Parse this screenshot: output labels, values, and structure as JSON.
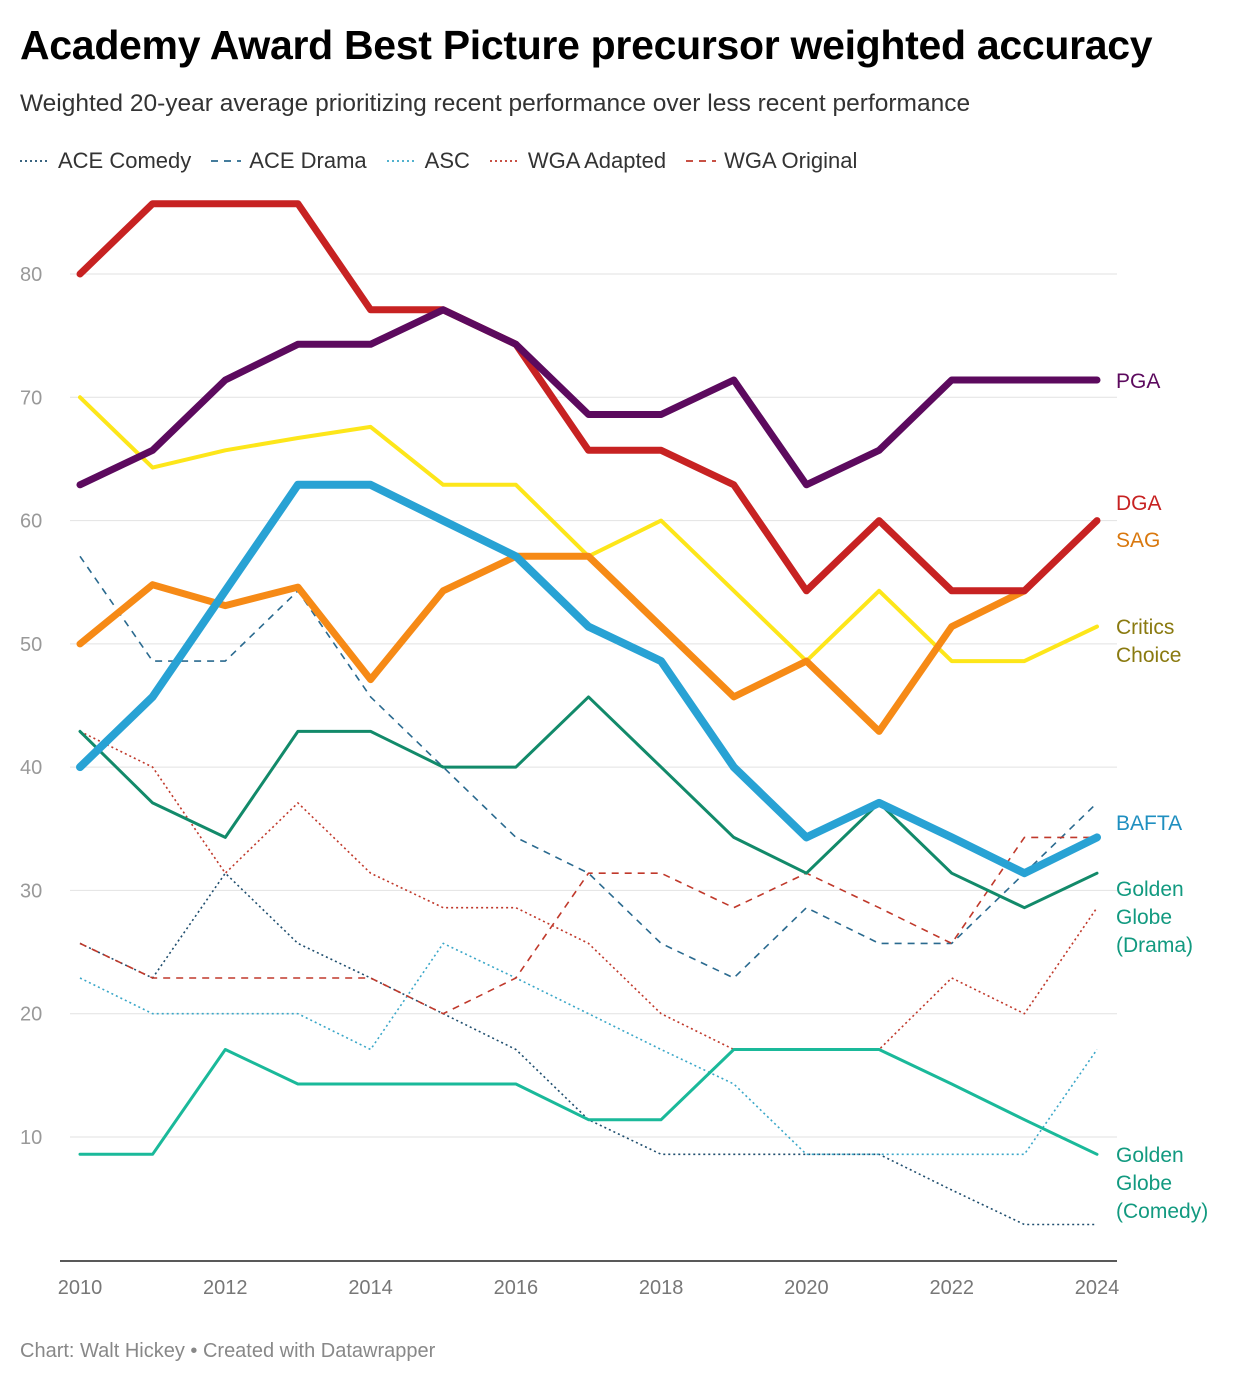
{
  "title": "Academy Award Best Picture precursor weighted accuracy",
  "subtitle": "Weighted 20-year average prioritizing recent performance over less recent performance",
  "credit": "Chart: Walt Hickey • Created with Datawrapper",
  "legend": [
    {
      "name": "ACE Comedy",
      "color": "#1f4e6e",
      "dash": "dotted"
    },
    {
      "name": "ACE Drama",
      "color": "#2a6a8f",
      "dash": "dashed"
    },
    {
      "name": "ASC",
      "color": "#3aa7c8",
      "dash": "dotted"
    },
    {
      "name": "WGA Adapted",
      "color": "#c0392b",
      "dash": "dotted"
    },
    {
      "name": "WGA Original",
      "color": "#c0392b",
      "dash": "dashed"
    }
  ],
  "chart_data": {
    "type": "line",
    "x": [
      2010,
      2011,
      2012,
      2013,
      2014,
      2015,
      2016,
      2017,
      2018,
      2019,
      2020,
      2021,
      2022,
      2023,
      2024
    ],
    "xticks": [
      "2010",
      "2012",
      "2014",
      "2016",
      "2018",
      "2020",
      "2022",
      "2024"
    ],
    "yticks": [
      "10",
      "20",
      "30",
      "40",
      "50",
      "60",
      "70",
      "80"
    ],
    "ylim": [
      0,
      88
    ],
    "grid": true,
    "series": [
      {
        "name": "ACE Comedy",
        "color": "#1f4e6e",
        "width": 1.6,
        "dash": "dotted",
        "label": false,
        "values": [
          25.7,
          22.9,
          31.4,
          25.7,
          22.9,
          20,
          17.1,
          11.4,
          8.6,
          8.6,
          8.6,
          8.6,
          5.7,
          2.9,
          2.9
        ]
      },
      {
        "name": "ACE Drama",
        "color": "#2a6a8f",
        "width": 1.6,
        "dash": "dashed",
        "label": false,
        "values": [
          57.1,
          48.6,
          48.6,
          54.3,
          45.7,
          40,
          34.3,
          31.4,
          25.7,
          22.9,
          28.6,
          25.7,
          25.7,
          31.4,
          37.1
        ]
      },
      {
        "name": "ASC",
        "color": "#3aa7c8",
        "width": 1.6,
        "dash": "dotted",
        "label": false,
        "values": [
          22.9,
          20,
          20,
          20,
          17.1,
          25.7,
          22.9,
          20,
          17.1,
          14.3,
          8.6,
          8.6,
          8.6,
          8.6,
          17.1
        ]
      },
      {
        "name": "WGA Adapted",
        "color": "#c0392b",
        "width": 1.6,
        "dash": "dotted",
        "label": false,
        "values": [
          42.9,
          40,
          31.4,
          37.1,
          31.4,
          28.6,
          28.6,
          25.7,
          20,
          17.1,
          17.1,
          17.1,
          22.9,
          20,
          28.6
        ]
      },
      {
        "name": "WGA Original",
        "color": "#c0392b",
        "width": 1.6,
        "dash": "dashed",
        "label": false,
        "values": [
          25.7,
          22.9,
          22.9,
          22.9,
          22.9,
          20,
          22.9,
          31.4,
          31.4,
          28.6,
          31.4,
          28.6,
          25.7,
          34.3,
          34.3
        ]
      },
      {
        "name": "Golden Globe (Comedy)",
        "labelLines": [
          "Golden",
          "Globe",
          "(Comedy)"
        ],
        "color": "#1ab99a",
        "labelColor": "#129a80",
        "width": 3,
        "dash": "solid",
        "label": true,
        "values": [
          8.6,
          8.6,
          17.1,
          14.3,
          14.3,
          14.3,
          14.3,
          11.4,
          11.4,
          17.1,
          17.1,
          17.1,
          14.3,
          11.4,
          8.6
        ]
      },
      {
        "name": "Golden Globe (Drama)",
        "labelLines": [
          "Golden",
          "Globe",
          "(Drama)"
        ],
        "color": "#128a6a",
        "labelColor": "#129a80",
        "width": 3,
        "dash": "solid",
        "label": true,
        "values": [
          42.9,
          37.1,
          34.3,
          42.9,
          42.9,
          40,
          40,
          45.7,
          40,
          34.3,
          31.4,
          37.1,
          31.4,
          28.6,
          31.4
        ]
      },
      {
        "name": "Critics Choice",
        "labelLines": [
          "Critics",
          "Choice"
        ],
        "color": "#fde61a",
        "labelColor": "#8a7a10",
        "width": 4,
        "dash": "solid",
        "label": true,
        "values": [
          70,
          64.3,
          65.7,
          66.7,
          67.6,
          62.9,
          62.9,
          57.1,
          60,
          54.3,
          48.6,
          54.3,
          48.6,
          48.6,
          51.4
        ]
      },
      {
        "name": "SAG",
        "labelLines": [
          "SAG"
        ],
        "color": "#f68a16",
        "labelColor": "#d9780e",
        "width": 7,
        "dash": "solid",
        "label": true,
        "values": [
          50,
          54.8,
          53.1,
          54.6,
          47.1,
          54.3,
          57.1,
          57.1,
          51.4,
          45.7,
          48.6,
          42.9,
          51.4,
          54.3,
          null
        ]
      },
      {
        "name": "BAFTA",
        "labelLines": [
          "BAFTA"
        ],
        "color": "#28a2d4",
        "labelColor": "#1f8fc0",
        "width": 8,
        "dash": "solid",
        "label": true,
        "values": [
          40,
          45.7,
          54.3,
          62.9,
          62.9,
          60,
          57.1,
          51.4,
          48.6,
          40,
          34.3,
          37.1,
          34.3,
          31.4,
          34.3
        ]
      },
      {
        "name": "DGA",
        "labelLines": [
          "DGA"
        ],
        "color": "#c72222",
        "labelColor": "#c72222",
        "width": 7,
        "dash": "solid",
        "label": true,
        "values": [
          80,
          85.7,
          85.7,
          85.7,
          77.1,
          77.1,
          74.3,
          65.7,
          65.7,
          62.9,
          54.3,
          60,
          54.3,
          54.3,
          60
        ]
      },
      {
        "name": "PGA",
        "labelLines": [
          "PGA"
        ],
        "color": "#5c0a5e",
        "labelColor": "#5c0a5e",
        "width": 7,
        "dash": "solid",
        "label": true,
        "values": [
          62.9,
          65.7,
          71.4,
          74.3,
          74.3,
          77.1,
          74.3,
          68.6,
          68.6,
          71.4,
          62.9,
          65.7,
          71.4,
          71.4,
          71.4
        ]
      }
    ]
  }
}
